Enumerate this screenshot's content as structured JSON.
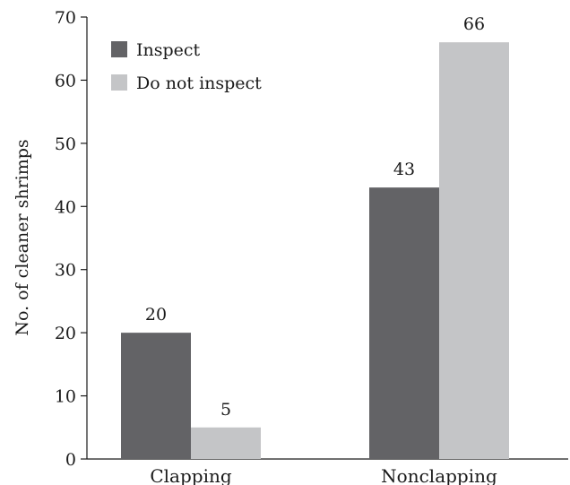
{
  "chart_data": {
    "type": "bar",
    "title": "",
    "xlabel": "",
    "ylabel": "No. of cleaner shrimps",
    "ylim": [
      0,
      70
    ],
    "yticks": [
      0,
      10,
      20,
      30,
      40,
      50,
      60,
      70
    ],
    "grid": false,
    "legend_position": "top-left",
    "categories": [
      "Clapping",
      "Nonclapping"
    ],
    "series": [
      {
        "name": "Inspect",
        "values": [
          20,
          43
        ],
        "color": "#636366"
      },
      {
        "name": "Do not inspect",
        "values": [
          5,
          66
        ],
        "color": "#c4c5c7"
      }
    ],
    "data_labels": true
  }
}
